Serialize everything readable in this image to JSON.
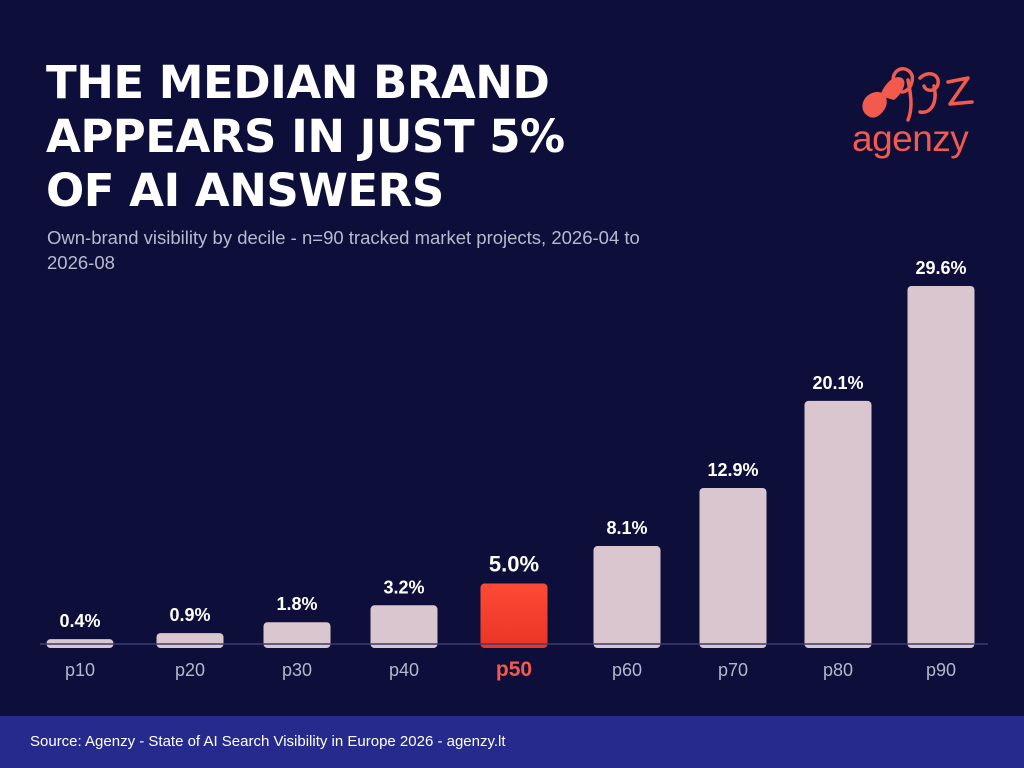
{
  "header": {
    "title": "THE MEDIAN BRAND\nAPPEARS IN JUST 5%\nOF AI ANSWERS",
    "subtitle": "Own-brand visibility by decile - n=90 tracked market projects, 2026-04 to 2026-08"
  },
  "brand": {
    "name": "agenzy",
    "color": "#f25a4d",
    "icon": "agenzy-logo-icon"
  },
  "footer": {
    "source": "Source: Agenzy - State of AI Search Visibility in Europe 2026 - agenzy.lt"
  },
  "colors": {
    "background": "#0d0f3a",
    "bar": "#d9c6cf",
    "highlight_bar": "#ea3424",
    "highlight_label": "#f25a4d",
    "tick_label": "#b6b6cc",
    "footer_bg": "#252a8c"
  },
  "chart_data": {
    "type": "bar",
    "title": "THE MEDIAN BRAND APPEARS IN JUST 5% OF AI ANSWERS",
    "categories": [
      "p10",
      "p20",
      "p30",
      "p40",
      "p50",
      "p60",
      "p70",
      "p80",
      "p90"
    ],
    "values": [
      0.4,
      0.9,
      1.8,
      3.2,
      5.0,
      8.1,
      12.9,
      20.1,
      29.6
    ],
    "data_labels": [
      "0.4%",
      "0.9%",
      "1.8%",
      "3.2%",
      "5.0%",
      "8.1%",
      "12.9%",
      "20.1%",
      "29.6%"
    ],
    "highlight": "p50",
    "xlabel": "",
    "ylabel": "",
    "ylim": [
      0,
      30
    ],
    "grid": false,
    "legend": "none"
  }
}
